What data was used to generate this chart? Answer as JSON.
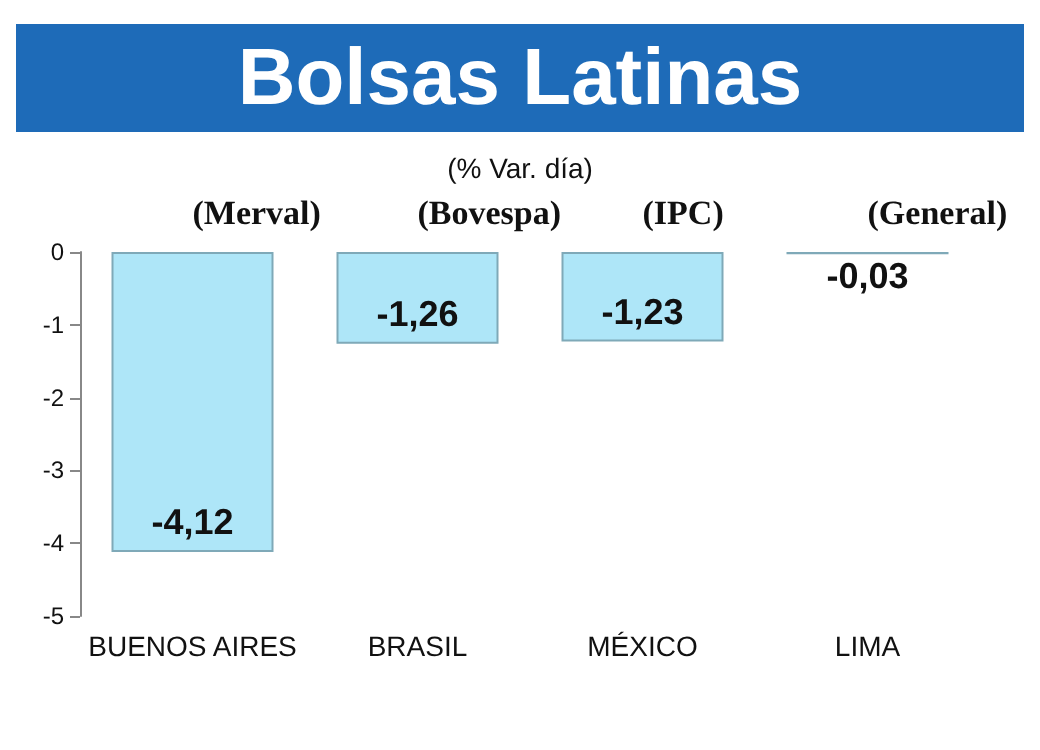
{
  "chart_data": {
    "type": "bar",
    "title": "Bolsas Latinas",
    "subtitle": "(% Var. día)",
    "categories": [
      "BUENOS AIRES",
      "BRASIL",
      "MÉXICO",
      "LIMA"
    ],
    "values": [
      -4.12,
      -1.26,
      -1.23,
      -0.03
    ],
    "value_labels": [
      "-4,12",
      "-1,26",
      "-1,23",
      "-0,03"
    ],
    "color": "#aee6f8",
    "ylim": [
      -5,
      0
    ],
    "yticks": [
      -5,
      -4,
      -3,
      -2,
      -1,
      0
    ],
    "annotations": [
      "(Merval)",
      "(Bovespa)",
      "(IPC)",
      "(General)"
    ],
    "grid": false
  }
}
